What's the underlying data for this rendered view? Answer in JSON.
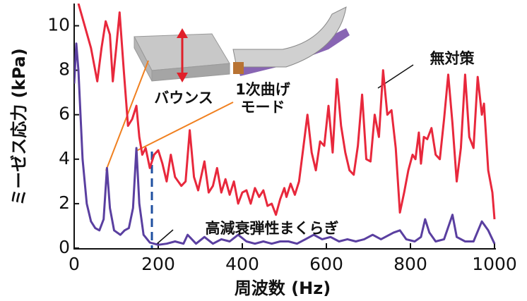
{
  "chart_data": {
    "type": "line",
    "y_label": "ミーゼス応力 (kPa)",
    "x_label": "周波数 (Hz)",
    "xlim": [
      0,
      1000
    ],
    "xticks": [
      0,
      200,
      400,
      600,
      800,
      1000
    ],
    "ylim": [
      0,
      11
    ],
    "yticks": [
      0,
      2,
      4,
      6,
      8,
      10
    ],
    "annotations": [
      "無対策",
      "高減衰弾性まくらぎ",
      "バウンス",
      "1次曲げ",
      "モード"
    ],
    "series": [
      {
        "name": "無対策",
        "color": "#e8283c",
        "x": [
          10,
          40,
          55,
          65,
          75,
          85,
          92,
          100,
          108,
          118,
          128,
          138,
          148,
          155,
          162,
          170,
          180,
          190,
          200,
          210,
          220,
          230,
          240,
          255,
          265,
          275,
          285,
          295,
          310,
          320,
          330,
          340,
          350,
          360,
          370,
          380,
          390,
          400,
          410,
          420,
          430,
          440,
          450,
          460,
          470,
          480,
          490,
          500,
          505,
          515,
          525,
          535,
          545,
          555,
          565,
          575,
          585,
          595,
          605,
          615,
          625,
          635,
          645,
          655,
          665,
          675,
          685,
          695,
          705,
          715,
          725,
          735,
          745,
          755,
          765,
          775,
          785,
          795,
          805,
          812,
          820,
          825,
          832,
          840,
          850,
          860,
          870,
          880,
          890,
          900,
          910,
          920,
          930,
          940,
          950,
          960,
          970,
          975,
          985,
          995,
          1000
        ],
        "values": [
          11,
          9,
          7.5,
          9,
          10.2,
          9.6,
          7.5,
          9,
          10.6,
          8,
          5.5,
          5.8,
          6.4,
          5.0,
          4.2,
          4.5,
          3.6,
          4.2,
          4.4,
          3.8,
          3.0,
          4.2,
          3.2,
          2.8,
          3.0,
          5.3,
          3.2,
          2.6,
          3.9,
          2.5,
          2.8,
          3.6,
          2.5,
          3.1,
          2.4,
          3.0,
          2.0,
          2.5,
          2.6,
          2.0,
          2.7,
          2.3,
          2.6,
          1.9,
          2.0,
          1.5,
          2.2,
          2.7,
          2.3,
          2.9,
          2.4,
          3.0,
          4.5,
          6.0,
          4.3,
          3.5,
          4.8,
          4.6,
          6.4,
          4.3,
          7.6,
          5.5,
          4.3,
          3.5,
          3.3,
          4.6,
          6.9,
          4.0,
          3.9,
          6.0,
          5.0,
          8.0,
          6.0,
          6.2,
          4.5,
          1.6,
          2.5,
          3.5,
          4.2,
          4.0,
          5.2,
          3.8,
          5.0,
          4.9,
          5.4,
          4.2,
          4.0,
          5.8,
          7.8,
          5.6,
          3.0,
          4.5,
          7.8,
          5.0,
          4.5,
          7.7,
          6.0,
          6.5,
          3.5,
          2.5,
          1.3
        ]
      },
      {
        "name": "高減衰弾性まくらぎ",
        "color": "#5a3fa0",
        "x": [
          0,
          5,
          10,
          20,
          30,
          40,
          50,
          60,
          70,
          78,
          85,
          95,
          110,
          120,
          130,
          140,
          148,
          155,
          165,
          180,
          200,
          220,
          240,
          260,
          270,
          290,
          310,
          330,
          350,
          370,
          390,
          410,
          430,
          450,
          470,
          490,
          510,
          530,
          550,
          570,
          590,
          610,
          630,
          650,
          670,
          690,
          710,
          730,
          760,
          775,
          790,
          810,
          825,
          835,
          845,
          860,
          880,
          900,
          910,
          930,
          950,
          970,
          985,
          1000
        ],
        "values": [
          7.4,
          9.2,
          8.0,
          4.0,
          2.0,
          1.2,
          0.9,
          0.8,
          1.3,
          3.6,
          1.8,
          0.8,
          0.6,
          0.8,
          0.9,
          1.8,
          4.5,
          2.0,
          0.6,
          0.25,
          0.15,
          0.2,
          0.3,
          0.2,
          0.6,
          0.2,
          0.5,
          0.2,
          0.4,
          0.3,
          0.6,
          0.3,
          0.2,
          0.3,
          0.2,
          0.3,
          0.3,
          0.2,
          0.4,
          0.6,
          0.4,
          0.5,
          0.3,
          0.4,
          0.3,
          0.4,
          0.6,
          0.4,
          0.7,
          0.8,
          0.4,
          0.3,
          0.5,
          1.3,
          0.7,
          0.3,
          0.4,
          1.5,
          0.5,
          0.3,
          0.3,
          1.2,
          0.8,
          0.2
        ]
      }
    ]
  }
}
